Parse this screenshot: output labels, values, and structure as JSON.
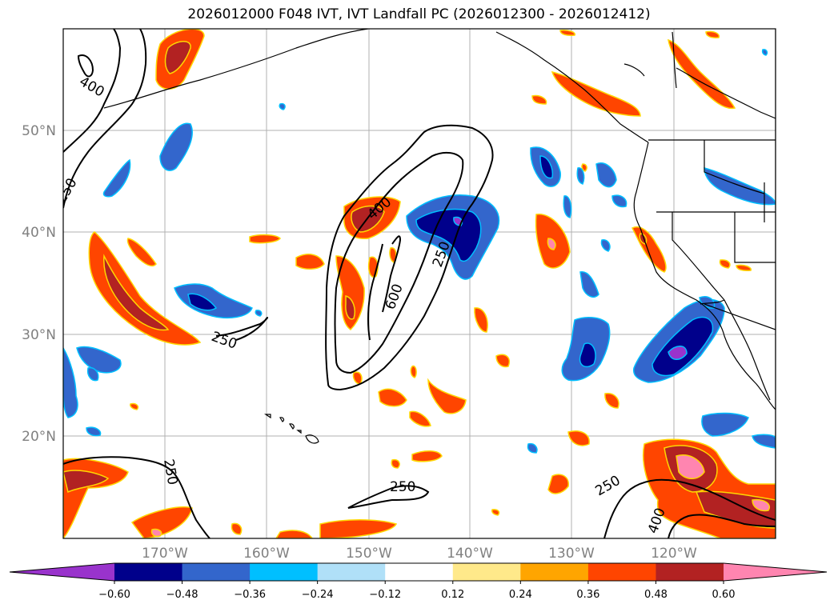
{
  "title": "2026012000 F048 IVT, IVT Landfall PC (2026012300 - 2026012412)",
  "lat_labels": [
    "50°N",
    "40°N",
    "30°N",
    "20°N"
  ],
  "lon_labels": [
    "170°W",
    "160°W",
    "150°W",
    "140°W",
    "130°W",
    "120°W"
  ],
  "contour_labels": [
    "400",
    "250",
    "250",
    "400",
    "600",
    "250",
    "250",
    "250",
    "250",
    "400"
  ],
  "colorbar": {
    "colors": [
      "#9933cc",
      "#00008b",
      "#3366cc",
      "#00bfff",
      "#b0e0f8",
      "#ffffff",
      "#ffe98a",
      "#ffa500",
      "#ff4500",
      "#b22222",
      "#ff85b0"
    ],
    "tick_labels": [
      "−0.60",
      "−0.48",
      "−0.36",
      "−0.24",
      "−0.12",
      "0.12",
      "0.24",
      "0.36",
      "0.48",
      "0.60"
    ]
  }
}
